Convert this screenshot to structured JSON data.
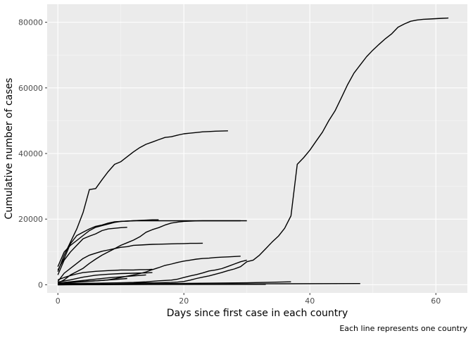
{
  "chart_data": {
    "type": "line",
    "title": "",
    "xlabel": "Days since first case in each country",
    "ylabel": "Cumulative number of cases",
    "caption": "Each line represents one country",
    "xlim": [
      -1.7,
      65
    ],
    "ylim": [
      -2500,
      85500
    ],
    "x_ticks": [
      0,
      20,
      40,
      60
    ],
    "x_tick_labels": [
      "0",
      "20",
      "40",
      "60"
    ],
    "y_ticks": [
      0,
      20000,
      40000,
      60000,
      80000
    ],
    "y_tick_labels": [
      "0",
      "20000",
      "40000",
      "60000",
      "80000"
    ],
    "grid": true,
    "legend": "none",
    "series": [
      {
        "name": "country-1",
        "x": [
          0,
          1,
          2,
          3,
          4,
          5,
          6,
          7,
          8,
          9,
          10,
          11,
          12,
          13,
          14,
          15,
          16,
          17,
          18,
          19,
          20,
          21,
          22,
          23,
          24,
          25,
          26,
          27,
          28,
          29,
          30,
          31,
          32,
          33,
          34,
          35,
          36,
          37,
          38,
          39,
          40,
          41,
          42,
          43,
          44,
          45,
          46,
          47,
          48,
          49,
          50,
          51,
          52,
          53,
          54,
          55,
          56,
          57,
          58,
          59,
          60,
          61,
          62
        ],
        "y": [
          300,
          350,
          400,
          420,
          440,
          460,
          470,
          480,
          490,
          500,
          510,
          520,
          530,
          540,
          560,
          570,
          600,
          650,
          700,
          800,
          1000,
          1400,
          1900,
          2300,
          2700,
          3200,
          3700,
          4300,
          4800,
          5500,
          7000,
          7500,
          9000,
          11000,
          13000,
          14800,
          17200,
          21000,
          36700,
          38700,
          41000,
          43800,
          46500,
          50000,
          53000,
          57000,
          61000,
          64500,
          67000,
          69500,
          71500,
          73300,
          75000,
          76500,
          78500,
          79500,
          80300,
          80700,
          80900,
          81000,
          81100,
          81200,
          81300
        ]
      },
      {
        "name": "country-2",
        "x": [
          0,
          1,
          2,
          3,
          4,
          5,
          6,
          7,
          8,
          9,
          10,
          11,
          12,
          13,
          14,
          15,
          16,
          17,
          18,
          19,
          20,
          21,
          22,
          23,
          24,
          25,
          26,
          27
        ],
        "y": [
          4000,
          9000,
          13000,
          17000,
          22000,
          29000,
          29300,
          32000,
          34500,
          36700,
          37500,
          39000,
          40500,
          41800,
          42800,
          43500,
          44200,
          44900,
          45100,
          45600,
          46000,
          46200,
          46400,
          46600,
          46700,
          46800,
          46850,
          46900
        ]
      },
      {
        "name": "country-3",
        "x": [
          0,
          1,
          2,
          3,
          4,
          5,
          6,
          7,
          8,
          9,
          10,
          11,
          12,
          13,
          14,
          15,
          16,
          17,
          18,
          19,
          20,
          21,
          22,
          23,
          24,
          25,
          26,
          27,
          28,
          29,
          30
        ],
        "y": [
          5500,
          10000,
          12000,
          13500,
          15000,
          16500,
          17500,
          18000,
          18500,
          19000,
          19300,
          19400,
          19500,
          19500,
          19500,
          19500,
          19500,
          19500,
          19500,
          19500,
          19500,
          19500,
          19500,
          19500,
          19500,
          19500,
          19500,
          19500,
          19500,
          19500,
          19500
        ]
      },
      {
        "name": "country-4",
        "x": [
          0,
          1,
          2,
          3,
          4,
          5,
          6,
          7,
          8,
          9,
          10,
          11,
          12,
          13,
          14,
          15,
          16
        ],
        "y": [
          4500,
          8000,
          12500,
          15000,
          16000,
          17000,
          17800,
          18200,
          18800,
          19200,
          19300,
          19400,
          19500,
          19600,
          19700,
          19800,
          19800
        ]
      },
      {
        "name": "country-5",
        "x": [
          0,
          1,
          2,
          3,
          4,
          5,
          6,
          7,
          8,
          9,
          10,
          11
        ],
        "y": [
          3000,
          7500,
          10000,
          12000,
          14000,
          14800,
          15500,
          16500,
          17000,
          17200,
          17400,
          17500
        ]
      },
      {
        "name": "country-6",
        "x": [
          0,
          1,
          2,
          3,
          4,
          5,
          6,
          7,
          8,
          9,
          10,
          11,
          12,
          13,
          14,
          15,
          16,
          17,
          18,
          19,
          20,
          21,
          22,
          23
        ],
        "y": [
          1000,
          3500,
          5000,
          6500,
          8000,
          9000,
          9600,
          10200,
          10600,
          11000,
          11400,
          11600,
          12000,
          12100,
          12200,
          12300,
          12350,
          12400,
          12450,
          12500,
          12550,
          12600,
          12600,
          12650
        ]
      },
      {
        "name": "country-7",
        "x": [
          0,
          1,
          2,
          3,
          4,
          5,
          6,
          7,
          8,
          9,
          10,
          11,
          12,
          13,
          14,
          15,
          16,
          17,
          18,
          19,
          20,
          21,
          22,
          23,
          24,
          25,
          26,
          27,
          28,
          29
        ],
        "y": [
          500,
          1500,
          3000,
          4000,
          5000,
          6500,
          7800,
          9000,
          10000,
          11000,
          12000,
          12800,
          13600,
          14600,
          16000,
          16800,
          17400,
          18200,
          18800,
          19100,
          19300,
          19400,
          19450,
          19500,
          19500,
          19500,
          19500,
          19500,
          19500,
          19500
        ]
      },
      {
        "name": "country-8",
        "x": [
          0,
          1,
          2,
          3,
          4,
          5,
          6,
          7,
          8,
          9,
          10,
          11,
          12,
          13,
          14,
          15,
          16,
          17,
          18,
          19,
          20,
          21,
          22,
          23,
          24,
          25,
          26,
          27,
          28,
          29
        ],
        "y": [
          200,
          400,
          700,
          900,
          1000,
          1100,
          1200,
          1300,
          1500,
          1800,
          2200,
          2600,
          3000,
          3400,
          3900,
          4600,
          5200,
          5900,
          6300,
          6800,
          7200,
          7500,
          7800,
          8000,
          8100,
          8300,
          8400,
          8500,
          8600,
          8700
        ]
      },
      {
        "name": "country-9",
        "x": [
          0,
          2,
          4,
          6,
          8,
          10,
          12,
          14,
          16,
          18,
          19,
          20,
          21,
          22,
          23,
          24,
          25,
          26,
          27,
          28,
          29,
          30
        ],
        "y": [
          100,
          200,
          300,
          400,
          500,
          600,
          700,
          900,
          1200,
          1400,
          1700,
          2200,
          2700,
          3100,
          3600,
          4200,
          4500,
          4900,
          5600,
          6300,
          7000,
          7500
        ]
      },
      {
        "name": "country-10",
        "x": [
          0,
          1,
          2,
          3,
          4,
          5,
          6,
          7,
          8,
          9,
          10,
          11,
          12,
          13,
          14,
          15
        ],
        "y": [
          1500,
          2200,
          2800,
          3300,
          3700,
          3900,
          4100,
          4200,
          4300,
          4400,
          4500,
          4500,
          4500,
          4600,
          4600,
          4700
        ]
      },
      {
        "name": "country-11",
        "x": [
          0,
          2,
          4,
          6,
          8,
          10,
          12,
          14,
          15
        ],
        "y": [
          800,
          1500,
          2300,
          2900,
          3200,
          3400,
          3500,
          3600,
          3700
        ]
      },
      {
        "name": "country-12",
        "x": [
          0,
          2,
          4,
          6,
          8,
          10,
          12,
          14
        ],
        "y": [
          500,
          900,
          1300,
          1700,
          2100,
          2400,
          2700,
          3000
        ]
      },
      {
        "name": "country-13",
        "x": [
          0,
          3,
          6,
          9,
          11
        ],
        "y": [
          400,
          800,
          1200,
          1600,
          1900
        ]
      },
      {
        "name": "country-14",
        "x": [
          0,
          10,
          20,
          30,
          37
        ],
        "y": [
          0,
          200,
          400,
          600,
          900
        ]
      },
      {
        "name": "country-15",
        "x": [
          0,
          12,
          24,
          36,
          48
        ],
        "y": [
          0,
          100,
          200,
          300,
          350
        ]
      },
      {
        "name": "country-16",
        "x": [
          0,
          10,
          20,
          33
        ],
        "y": [
          0,
          50,
          100,
          120
        ]
      }
    ]
  }
}
